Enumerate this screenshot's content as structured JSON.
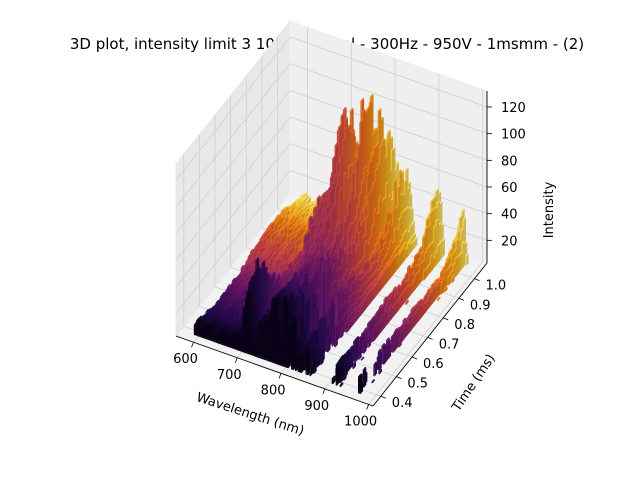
{
  "chart_data": {
    "type": "3d-bar",
    "title": "3D plot, intensity limit 3 10umVertical - 300Hz - 950V - 1msmm - (2)",
    "xlabel": "Wavelength (nm)",
    "ylabel": "Time (ms)",
    "zlabel": "Intensity",
    "x_ticks": [
      "600",
      "700",
      "800",
      "900",
      "1000"
    ],
    "y_ticks": [
      "0.4",
      "0.5",
      "0.6",
      "0.7",
      "0.8",
      "0.9",
      "1.0"
    ],
    "z_ticks": [
      "20",
      "40",
      "60",
      "80",
      "100",
      "120"
    ],
    "xlim": [
      560,
      1010
    ],
    "ylim": [
      0.35,
      1.08
    ],
    "zlim": [
      3,
      132
    ],
    "grid": true,
    "colormap": "inferno",
    "colormap_axis": "time",
    "intensity_limit": 3,
    "peaks": [
      {
        "wavelength": 705,
        "time": 0.45,
        "intensity": 55
      },
      {
        "wavelength": 735,
        "time": 0.75,
        "intensity": 60
      },
      {
        "wavelength": 750,
        "time": 0.78,
        "intensity": 72
      },
      {
        "wavelength": 763,
        "time": 0.82,
        "intensity": 85
      },
      {
        "wavelength": 772,
        "time": 0.84,
        "intensity": 105
      },
      {
        "wavelength": 795,
        "time": 0.9,
        "intensity": 128
      },
      {
        "wavelength": 812,
        "time": 0.94,
        "intensity": 112
      },
      {
        "wavelength": 842,
        "time": 0.98,
        "intensity": 62
      },
      {
        "wavelength": 912,
        "time": 1.02,
        "intensity": 55
      },
      {
        "wavelength": 965,
        "time": 1.05,
        "intensity": 42
      }
    ]
  }
}
